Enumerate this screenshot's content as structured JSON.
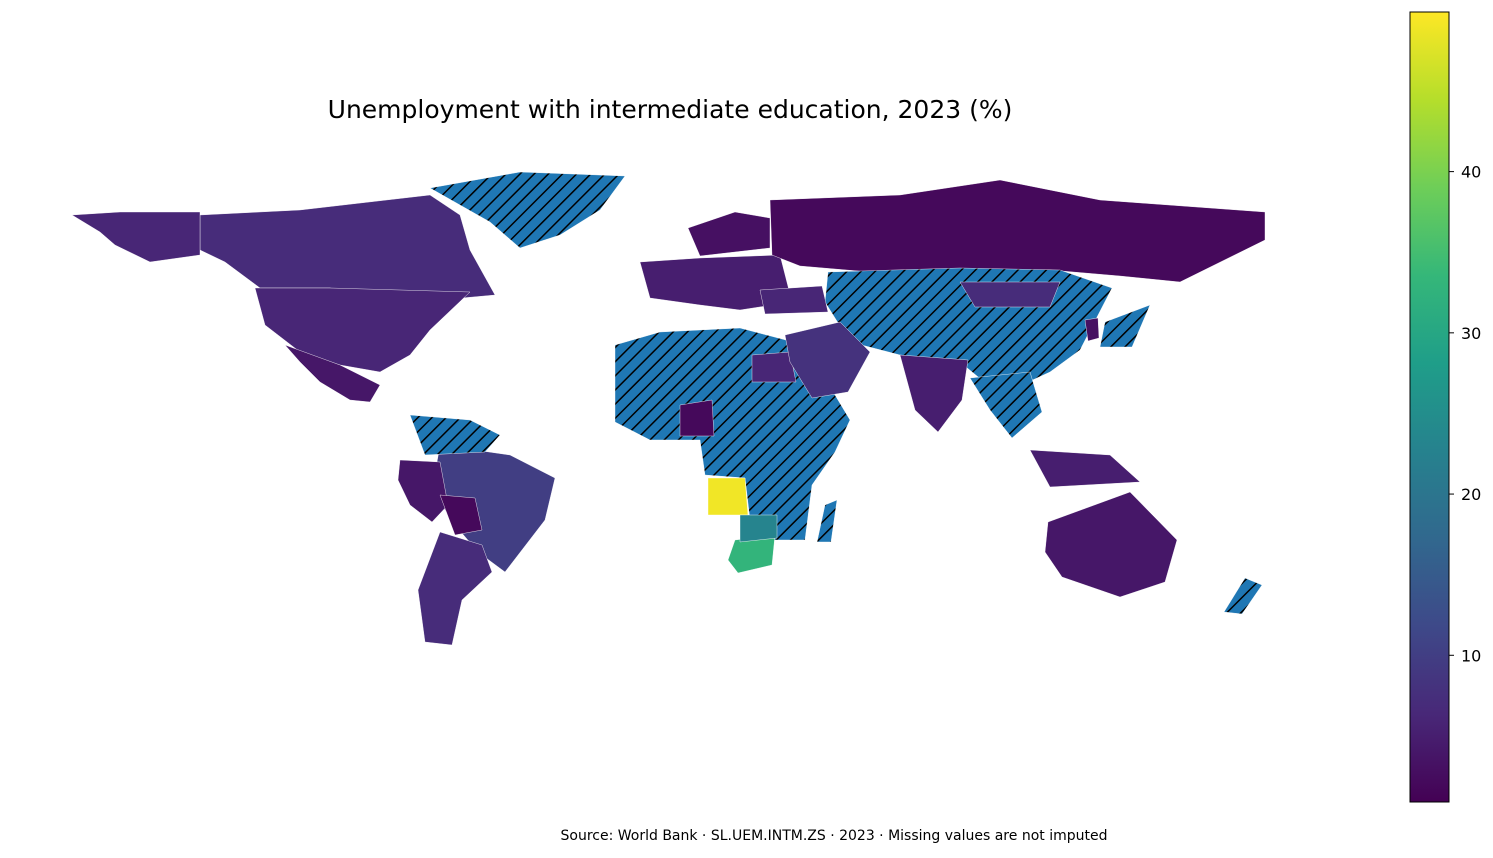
{
  "chart_data": {
    "type": "choropleth",
    "title": "Unemployment with intermediate education, 2023 (%)",
    "source": "Source: World Bank · SL.UEM.INTM.ZS · 2023 · Missing values are not imputed",
    "colormap": "viridis",
    "missing_color": "#1f77b4",
    "clim": [
      0.9,
      49.9
    ],
    "cticks": [
      10,
      20,
      30,
      40
    ],
    "values": [
      7,
      6,
      6,
      4,
      null,
      10,
      null,
      4,
      2,
      7,
      null,
      6,
      49,
      33,
      23,
      2,
      5,
      2,
      3,
      null,
      7,
      5,
      8,
      6,
      null,
      5,
      4,
      null,
      null,
      null,
      3
    ]
  }
}
